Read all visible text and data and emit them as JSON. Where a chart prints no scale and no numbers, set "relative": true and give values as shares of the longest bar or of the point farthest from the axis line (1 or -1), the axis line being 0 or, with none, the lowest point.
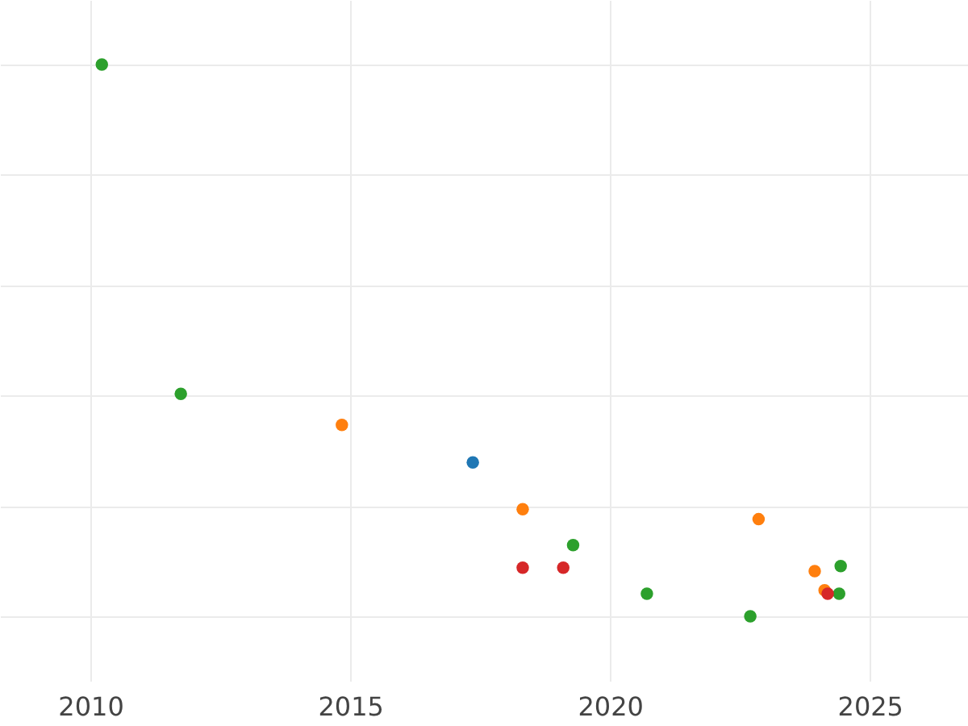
{
  "chart_data": {
    "type": "scatter",
    "relative": true,
    "xlim": [
      2008.26,
      2026.89
    ],
    "xticks": [
      2010,
      2015,
      2020,
      2025
    ],
    "grid": true,
    "marker": "circle",
    "series": [
      {
        "color": "#2ca02c",
        "x": [
          2010.22,
          2011.74,
          2019.29,
          2020.71,
          2022.7,
          2024.41,
          2024.44
        ],
        "values": [
          1.0,
          0.403,
          0.129,
          0.041,
          0,
          0.041,
          0.091
        ]
      },
      {
        "color": "#ff7f0e",
        "x": [
          2014.84,
          2018.32,
          2022.86,
          2023.94,
          2024.13
        ],
        "values": [
          0.347,
          0.194,
          0.176,
          0.082,
          0.047
        ]
      },
      {
        "color": "#1f77b4",
        "x": [
          2017.36
        ],
        "values": [
          0.279
        ]
      },
      {
        "color": "#d62728",
        "x": [
          2018.32,
          2019.1,
          2024.19
        ],
        "values": [
          0.088,
          0.088,
          0.041
        ]
      }
    ]
  }
}
